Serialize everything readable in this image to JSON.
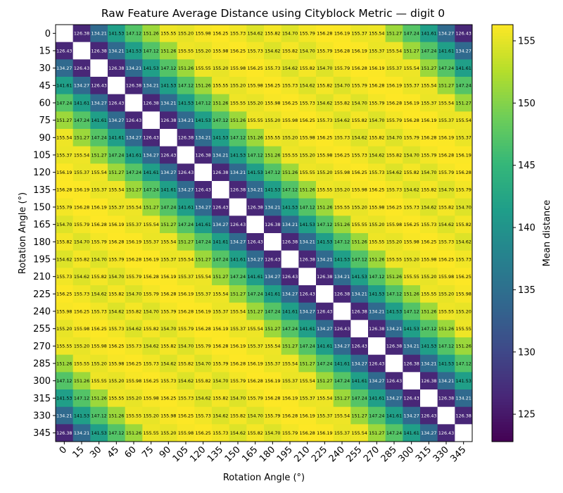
{
  "chart_data": {
    "type": "heatmap",
    "title": "Raw Feature Average Distance using Cityblock Metric — digit 0",
    "xlabel": "Rotation Angle (°)",
    "ylabel": "Rotation Angle (°)",
    "categories": [
      "0",
      "15",
      "30",
      "45",
      "60",
      "75",
      "90",
      "105",
      "120",
      "135",
      "150",
      "165",
      "180",
      "195",
      "210",
      "225",
      "240",
      "255",
      "270",
      "285",
      "300",
      "315",
      "330",
      "345"
    ],
    "first_row": [
      null,
      126.38,
      134.21,
      141.53,
      147.12,
      151.26,
      155.55,
      155.2,
      155.98,
      156.25,
      155.73,
      154.62,
      155.82,
      154.7,
      155.79,
      156.28,
      156.19,
      155.37,
      155.54,
      151.27,
      147.24,
      141.61,
      134.27,
      126.43
    ],
    "diagonal": "blank (self-distance not shown)",
    "symmetric": true,
    "circulant": true,
    "colorbar": {
      "label": "Mean distance",
      "colormap": "viridis",
      "range": [
        122.8,
        156.3
      ],
      "ticks": [
        125,
        130,
        135,
        140,
        145,
        150,
        155
      ]
    },
    "grid": false,
    "legend": "colorbar at right"
  }
}
